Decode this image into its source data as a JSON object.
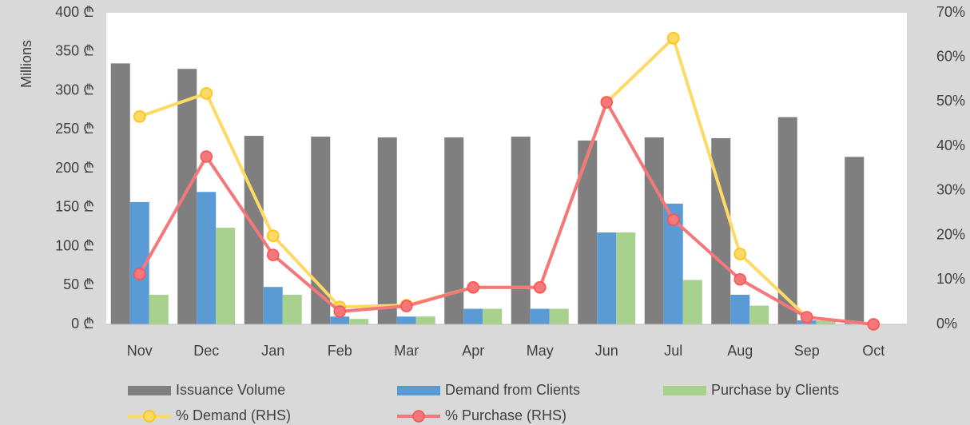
{
  "chart_data": {
    "type": "bar",
    "y_label": "Millions",
    "categories": [
      "Nov",
      "Dec",
      "Jan",
      "Feb",
      "Mar",
      "Apr",
      "May",
      "Jun",
      "Jul",
      "Aug",
      "Sep",
      "Oct"
    ],
    "series": [
      {
        "name": "Issuance Volume",
        "type": "bar",
        "color": "#7f7f7f",
        "values": [
          335,
          328,
          242,
          241,
          240,
          240,
          241,
          236,
          240,
          239,
          266,
          215
        ]
      },
      {
        "name": "Demand from Clients",
        "type": "bar",
        "color": "#5b9bd5",
        "values": [
          157,
          170,
          48,
          10,
          10,
          20,
          20,
          118,
          155,
          38,
          5,
          0
        ]
      },
      {
        "name": "Purchase by Clients",
        "type": "bar",
        "color": "#a9d18e",
        "values": [
          38,
          124,
          38,
          7,
          10,
          20,
          20,
          118,
          57,
          24,
          5,
          0
        ]
      },
      {
        "name": "% Demand (RHS)",
        "type": "line",
        "axis": "y2",
        "color": "#ffd966",
        "marker_color": "#ffc000",
        "values": [
          46.7,
          51.9,
          19.9,
          3.9,
          4.3,
          8.3,
          8.3,
          49.9,
          64.3,
          15.8,
          1.6,
          0
        ]
      },
      {
        "name": "% Purchase (RHS)",
        "type": "line",
        "axis": "y2",
        "color": "#f4777a",
        "marker_color": "#ff5050",
        "values": [
          11.3,
          37.7,
          15.6,
          2.9,
          4.1,
          8.3,
          8.3,
          49.9,
          23.5,
          10.1,
          1.6,
          0
        ]
      }
    ],
    "ylim": [
      0,
      400
    ],
    "yticks": [
      {
        "value": 0,
        "label": "0 ₾"
      },
      {
        "value": 50,
        "label": "50 ₾"
      },
      {
        "value": 100,
        "label": "100 ₾"
      },
      {
        "value": 150,
        "label": "150 ₾"
      },
      {
        "value": 200,
        "label": "200 ₾"
      },
      {
        "value": 250,
        "label": "250 ₾"
      },
      {
        "value": 300,
        "label": "300 ₾"
      },
      {
        "value": 350,
        "label": "350 ₾"
      },
      {
        "value": 400,
        "label": "400 ₾"
      }
    ],
    "y2lim": [
      0,
      70
    ],
    "y2ticks": [
      {
        "value": 0,
        "label": "0%"
      },
      {
        "value": 10,
        "label": "10%"
      },
      {
        "value": 20,
        "label": "20%"
      },
      {
        "value": 30,
        "label": "30%"
      },
      {
        "value": 40,
        "label": "40%"
      },
      {
        "value": 50,
        "label": "50%"
      },
      {
        "value": 60,
        "label": "60%"
      },
      {
        "value": 70,
        "label": "70%"
      }
    ],
    "legend": "bottom",
    "grid": false
  }
}
